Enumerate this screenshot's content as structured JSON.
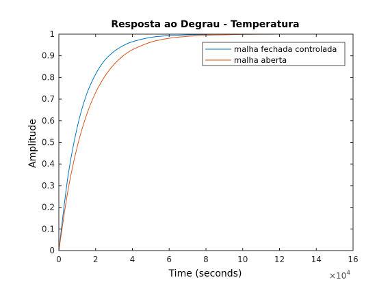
{
  "chart_data": {
    "type": "line",
    "title": "Resposta ao Degrau - Temperatura",
    "xlabel": "Time (seconds)",
    "ylabel": "Amplitude",
    "x_exponent_base": "×10",
    "x_exponent_power": "4",
    "xlim": [
      0,
      16
    ],
    "ylim": [
      0,
      1
    ],
    "x_ticks": [
      "0",
      "2",
      "4",
      "6",
      "8",
      "10",
      "12",
      "14",
      "16"
    ],
    "y_ticks": [
      "0",
      "0.1",
      "0.2",
      "0.3",
      "0.4",
      "0.5",
      "0.6",
      "0.7",
      "0.8",
      "0.9",
      "1"
    ],
    "grid": false,
    "legend_position": "top-right",
    "reference_line": {
      "y": 1,
      "style": "dotted",
      "color": "#000000"
    },
    "series": [
      {
        "name": "malha fechada controlada",
        "color": "#0072BD",
        "x": [
          0,
          0.5,
          1,
          1.5,
          2,
          2.5,
          3,
          3.5,
          4,
          5,
          6,
          7,
          8,
          9,
          10,
          12,
          14,
          16
        ],
        "y": [
          0,
          0.345,
          0.57,
          0.72,
          0.815,
          0.88,
          0.92,
          0.947,
          0.965,
          0.985,
          0.993,
          0.997,
          0.999,
          1.0,
          1.0,
          1.0,
          1.0,
          1.0
        ]
      },
      {
        "name": "malha aberta",
        "color": "#D95319",
        "x": [
          0,
          0.5,
          1,
          1.5,
          2,
          2.5,
          3,
          3.5,
          4,
          5,
          6,
          7,
          8,
          9,
          10,
          12,
          14,
          16
        ],
        "y": [
          0,
          0.28,
          0.48,
          0.625,
          0.73,
          0.805,
          0.86,
          0.9,
          0.928,
          0.963,
          0.981,
          0.99,
          0.995,
          0.997,
          0.999,
          1.0,
          1.0,
          1.0
        ]
      }
    ]
  }
}
